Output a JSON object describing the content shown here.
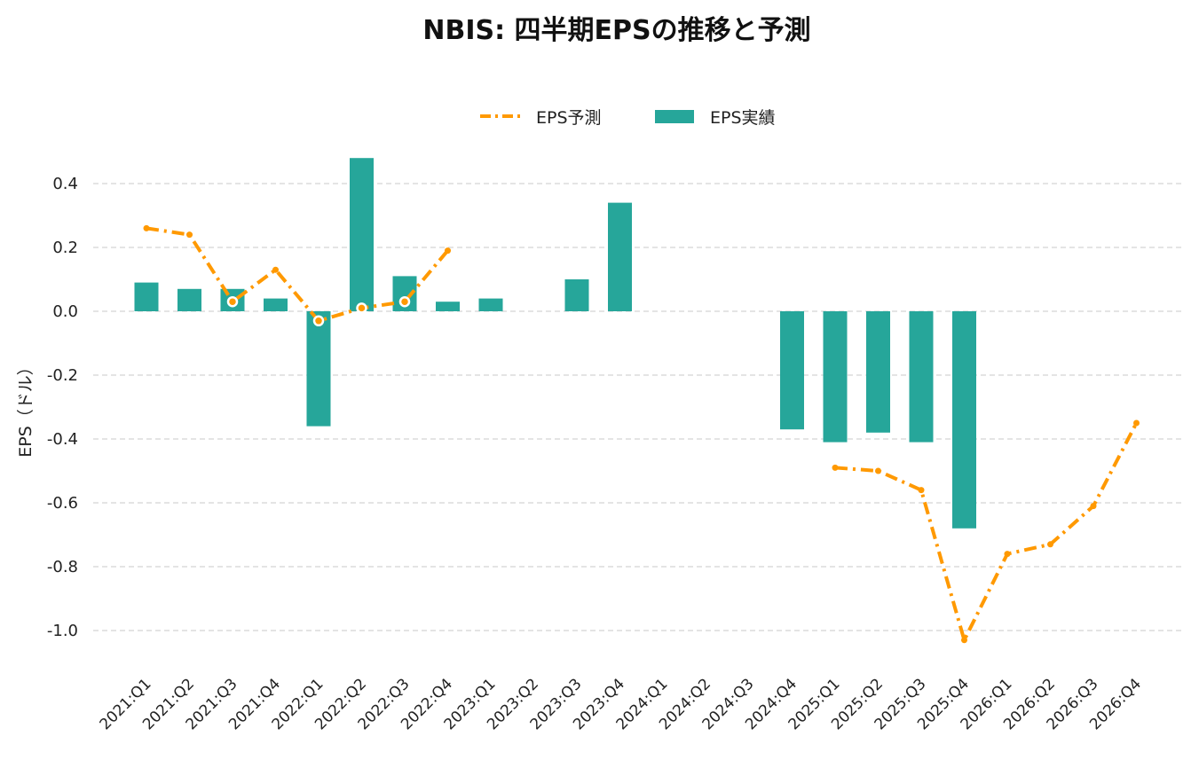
{
  "chart_data": {
    "type": "bar+line",
    "title": "NBIS: 四半期EPSの推移と予測",
    "xlabel": "",
    "ylabel": "EPS（ドル）",
    "ylim": [
      -1.1,
      0.5
    ],
    "yticks": [
      0.4,
      0.2,
      0.0,
      -0.2,
      -0.4,
      -0.6,
      -0.8,
      -1.0
    ],
    "ytick_labels": [
      "0.4",
      "0.2",
      "0.0",
      "-0.2",
      "-0.4",
      "-0.6",
      "-0.8",
      "-1.0"
    ],
    "grid": "horizontal dashed",
    "legend_position": "top-center",
    "categories": [
      "2021:Q1",
      "2021:Q2",
      "2021:Q3",
      "2021:Q4",
      "2022:Q1",
      "2022:Q2",
      "2022:Q3",
      "2022:Q4",
      "2023:Q1",
      "2023:Q2",
      "2023:Q3",
      "2023:Q4",
      "2024:Q1",
      "2024:Q2",
      "2024:Q3",
      "2024:Q4",
      "2025:Q1",
      "2025:Q2",
      "2025:Q3",
      "2025:Q4",
      "2026:Q1",
      "2026:Q2",
      "2026:Q3",
      "2026:Q4"
    ],
    "series": [
      {
        "name": "EPS予測",
        "type": "line",
        "style": "dash-dot",
        "color": "#FF9900",
        "values": [
          0.26,
          0.24,
          0.03,
          0.13,
          -0.03,
          0.01,
          0.03,
          0.19,
          null,
          null,
          null,
          null,
          null,
          null,
          null,
          null,
          -0.49,
          -0.5,
          -0.56,
          -1.03,
          -0.76,
          -0.73,
          -0.61,
          -0.35
        ]
      },
      {
        "name": "EPS実績",
        "type": "bar",
        "color": "#26A69A",
        "values": [
          0.09,
          0.07,
          0.07,
          0.04,
          -0.36,
          0.48,
          0.11,
          0.03,
          0.04,
          null,
          0.1,
          0.34,
          null,
          null,
          null,
          -0.37,
          -0.41,
          -0.38,
          -0.41,
          -0.68,
          null,
          null,
          null,
          null
        ]
      }
    ]
  }
}
